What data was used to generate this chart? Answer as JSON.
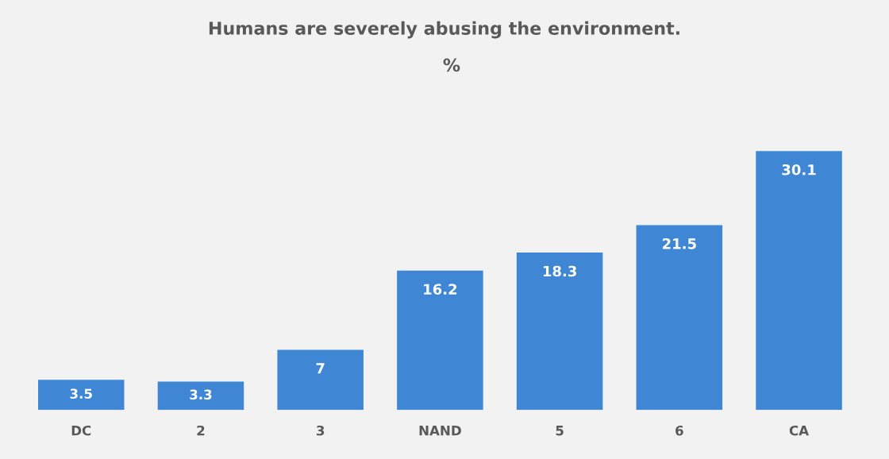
{
  "chart_data": {
    "type": "bar",
    "title": "Humans are severely abusing the environment.",
    "subtitle": "%",
    "categories": [
      "DC",
      "2",
      "3",
      "NAND",
      "5",
      "6",
      "CA"
    ],
    "values": [
      3.5,
      3.3,
      7,
      16.2,
      18.3,
      21.5,
      30.1
    ],
    "color": "#3f87d4",
    "data_labels": true,
    "grid": false,
    "legend": false
  }
}
